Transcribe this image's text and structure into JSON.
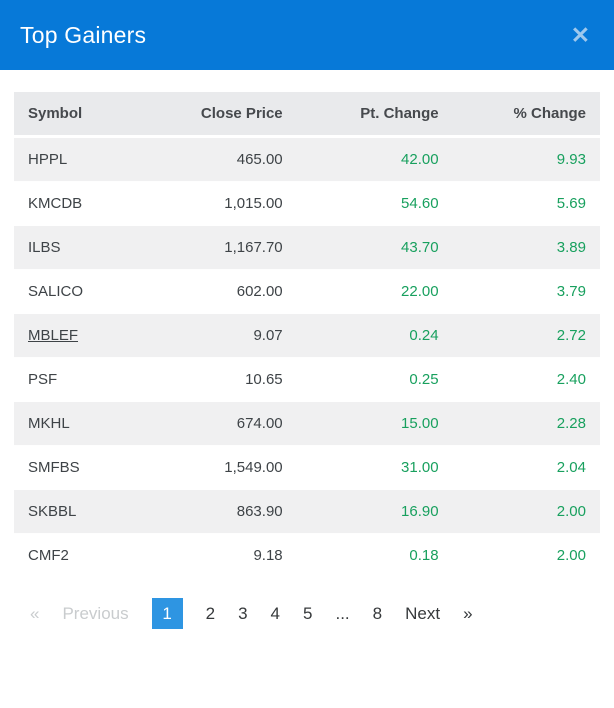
{
  "header": {
    "title": "Top Gainers",
    "close_icon": "✕"
  },
  "table": {
    "columns": [
      "Symbol",
      "Close Price",
      "Pt. Change",
      "% Change"
    ],
    "rows": [
      {
        "symbol": "HPPL",
        "close_price": "465.00",
        "pt_change": "42.00",
        "pct_change": "9.93",
        "underlined": false
      },
      {
        "symbol": "KMCDB",
        "close_price": "1,015.00",
        "pt_change": "54.60",
        "pct_change": "5.69",
        "underlined": false
      },
      {
        "symbol": "ILBS",
        "close_price": "1,167.70",
        "pt_change": "43.70",
        "pct_change": "3.89",
        "underlined": false
      },
      {
        "symbol": "SALICO",
        "close_price": "602.00",
        "pt_change": "22.00",
        "pct_change": "3.79",
        "underlined": false
      },
      {
        "symbol": "MBLEF",
        "close_price": "9.07",
        "pt_change": "0.24",
        "pct_change": "2.72",
        "underlined": true
      },
      {
        "symbol": "PSF",
        "close_price": "10.65",
        "pt_change": "0.25",
        "pct_change": "2.40",
        "underlined": false
      },
      {
        "symbol": "MKHL",
        "close_price": "674.00",
        "pt_change": "15.00",
        "pct_change": "2.28",
        "underlined": false
      },
      {
        "symbol": "SMFBS",
        "close_price": "1,549.00",
        "pt_change": "31.00",
        "pct_change": "2.04",
        "underlined": false
      },
      {
        "symbol": "SKBBL",
        "close_price": "863.90",
        "pt_change": "16.90",
        "pct_change": "2.00",
        "underlined": false
      },
      {
        "symbol": "CMF2",
        "close_price": "9.18",
        "pt_change": "0.18",
        "pct_change": "2.00",
        "underlined": false
      }
    ]
  },
  "pagination": {
    "items": [
      {
        "label": "«",
        "name": "pagination-first-arrow",
        "state": "disabled"
      },
      {
        "label": "Previous",
        "name": "pagination-previous",
        "state": "disabled"
      },
      {
        "label": "1",
        "name": "page-1",
        "state": "active"
      },
      {
        "label": "2",
        "name": "page-2",
        "state": "normal"
      },
      {
        "label": "3",
        "name": "page-3",
        "state": "normal"
      },
      {
        "label": "4",
        "name": "page-4",
        "state": "normal"
      },
      {
        "label": "5",
        "name": "page-5",
        "state": "normal"
      },
      {
        "label": "...",
        "name": "pagination-ellipsis",
        "state": "static"
      },
      {
        "label": "8",
        "name": "page-8",
        "state": "normal"
      },
      {
        "label": "Next",
        "name": "pagination-next",
        "state": "normal"
      },
      {
        "label": "»",
        "name": "pagination-last-arrow",
        "state": "normal"
      }
    ]
  },
  "colors": {
    "header_blue": "#0779d8",
    "active_page_blue": "#2e95e2",
    "gain_green": "#18a05e",
    "stripe_gray": "#f0f0f1",
    "thead_gray": "#e9eaec"
  }
}
